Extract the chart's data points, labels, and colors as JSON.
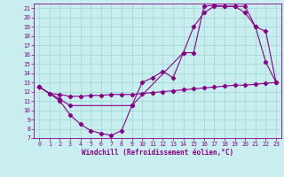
{
  "xlabel": "Windchill (Refroidissement éolien,°C)",
  "bg_color": "#c8eef0",
  "line_color": "#880088",
  "grid_color": "#a0d8d0",
  "xlim": [
    -0.5,
    23.5
  ],
  "ylim": [
    7,
    21.5
  ],
  "xticks": [
    0,
    1,
    2,
    3,
    4,
    5,
    6,
    7,
    8,
    9,
    10,
    11,
    12,
    13,
    14,
    15,
    16,
    17,
    18,
    19,
    20,
    21,
    22,
    23
  ],
  "yticks": [
    7,
    8,
    9,
    10,
    11,
    12,
    13,
    14,
    15,
    16,
    17,
    18,
    19,
    20,
    21
  ],
  "line1_x": [
    0,
    1,
    2,
    3,
    4,
    5,
    6,
    7,
    8,
    9,
    10,
    11,
    12,
    13,
    14,
    15,
    16,
    17,
    18,
    19,
    20,
    21,
    22,
    23
  ],
  "line1_y": [
    12.5,
    11.8,
    11.7,
    11.5,
    11.5,
    11.6,
    11.6,
    11.7,
    11.7,
    11.7,
    11.8,
    11.9,
    12.0,
    12.1,
    12.2,
    12.3,
    12.4,
    12.5,
    12.6,
    12.7,
    12.7,
    12.8,
    12.9,
    13.0
  ],
  "line2_x": [
    0,
    1,
    2,
    3,
    4,
    5,
    6,
    7,
    8,
    9,
    10,
    11,
    12,
    13,
    14,
    15,
    16,
    17,
    18,
    19,
    20,
    21,
    22,
    23
  ],
  "line2_y": [
    12.5,
    11.8,
    11.0,
    9.5,
    8.5,
    7.8,
    7.5,
    7.3,
    7.8,
    10.5,
    13.0,
    13.5,
    14.2,
    13.5,
    16.2,
    19.0,
    20.5,
    21.2,
    21.2,
    21.2,
    20.5,
    19.0,
    18.5,
    13.0
  ],
  "line3_x": [
    0,
    2,
    3,
    9,
    14,
    15,
    16,
    17,
    18,
    19,
    20,
    21,
    22,
    23
  ],
  "line3_y": [
    12.5,
    11.2,
    10.5,
    10.5,
    16.2,
    16.2,
    21.2,
    21.3,
    21.2,
    21.2,
    21.2,
    19.0,
    15.2,
    13.0
  ]
}
